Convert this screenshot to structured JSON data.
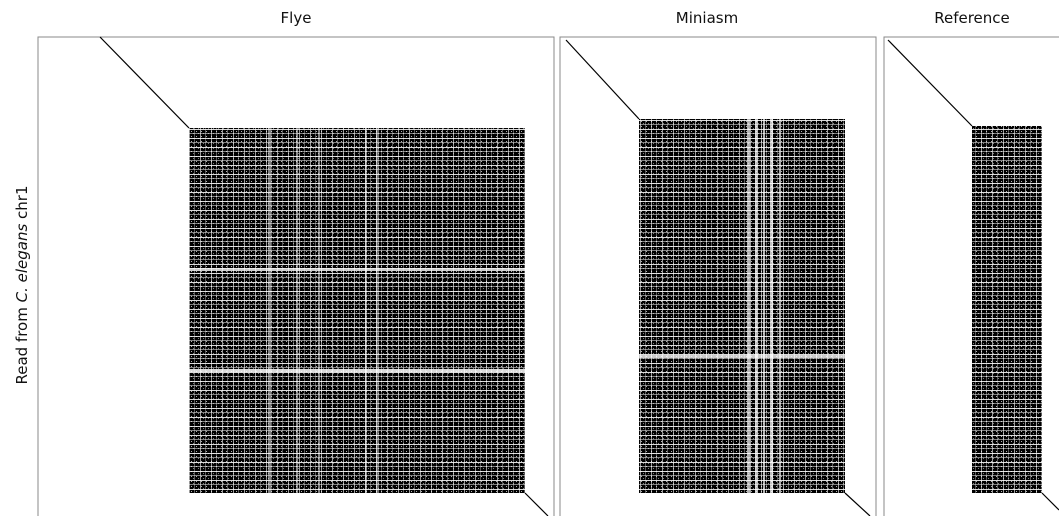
{
  "chart_data": {
    "type": "dotplot",
    "ylabel": {
      "prefix": "Read from ",
      "species": "C. elegans",
      "suffix": " chr1"
    },
    "panels": [
      {
        "title": "Flye"
      },
      {
        "title": "Miniasm"
      },
      {
        "title": "Reference"
      }
    ],
    "grid": false,
    "colors": {
      "dots": "#000000",
      "frame": "#888888",
      "background": "#ffffff"
    }
  }
}
